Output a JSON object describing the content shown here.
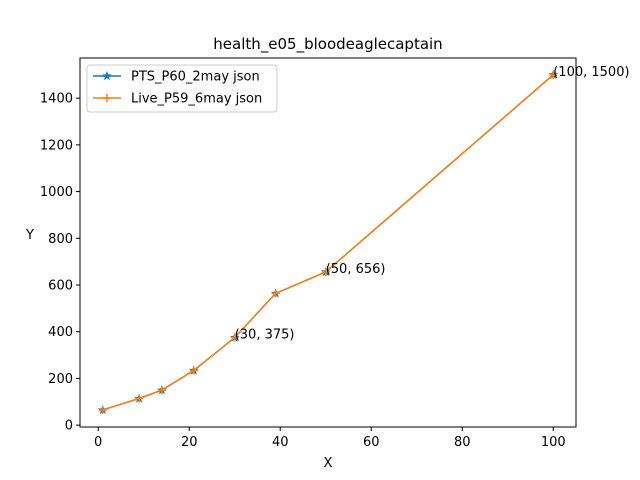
{
  "chart_data": {
    "type": "line",
    "title": "health_e05_bloodeaglecaptain",
    "xlabel": "X",
    "ylabel": "Y",
    "xlim": [
      -4,
      105
    ],
    "ylim": [
      -8,
      1572
    ],
    "xticks": [
      0,
      20,
      40,
      60,
      80,
      100
    ],
    "yticks": [
      0,
      200,
      400,
      600,
      800,
      1000,
      1200,
      1400
    ],
    "grid": false,
    "legend_position": "upper-left",
    "series": [
      {
        "name": "PTS_P60_2may json",
        "color": "#1f77b4",
        "marker": "star",
        "x": [
          1,
          9,
          14,
          21,
          30,
          39,
          50,
          100
        ],
        "y": [
          65,
          114,
          150,
          234,
          375,
          564,
          656,
          1500
        ]
      },
      {
        "name": "Live_P59_6may json",
        "color": "#ff7f0e",
        "marker": "plus",
        "x": [
          1,
          9,
          14,
          21,
          30,
          39,
          50,
          100
        ],
        "y": [
          65,
          114,
          150,
          234,
          375,
          564,
          656,
          1500
        ]
      }
    ],
    "annotations": [
      {
        "x": 30,
        "y": 375,
        "text": "(30, 375)"
      },
      {
        "x": 50,
        "y": 656,
        "text": "(50, 656)"
      },
      {
        "x": 100,
        "y": 1500,
        "text": "(100, 1500)"
      }
    ]
  }
}
